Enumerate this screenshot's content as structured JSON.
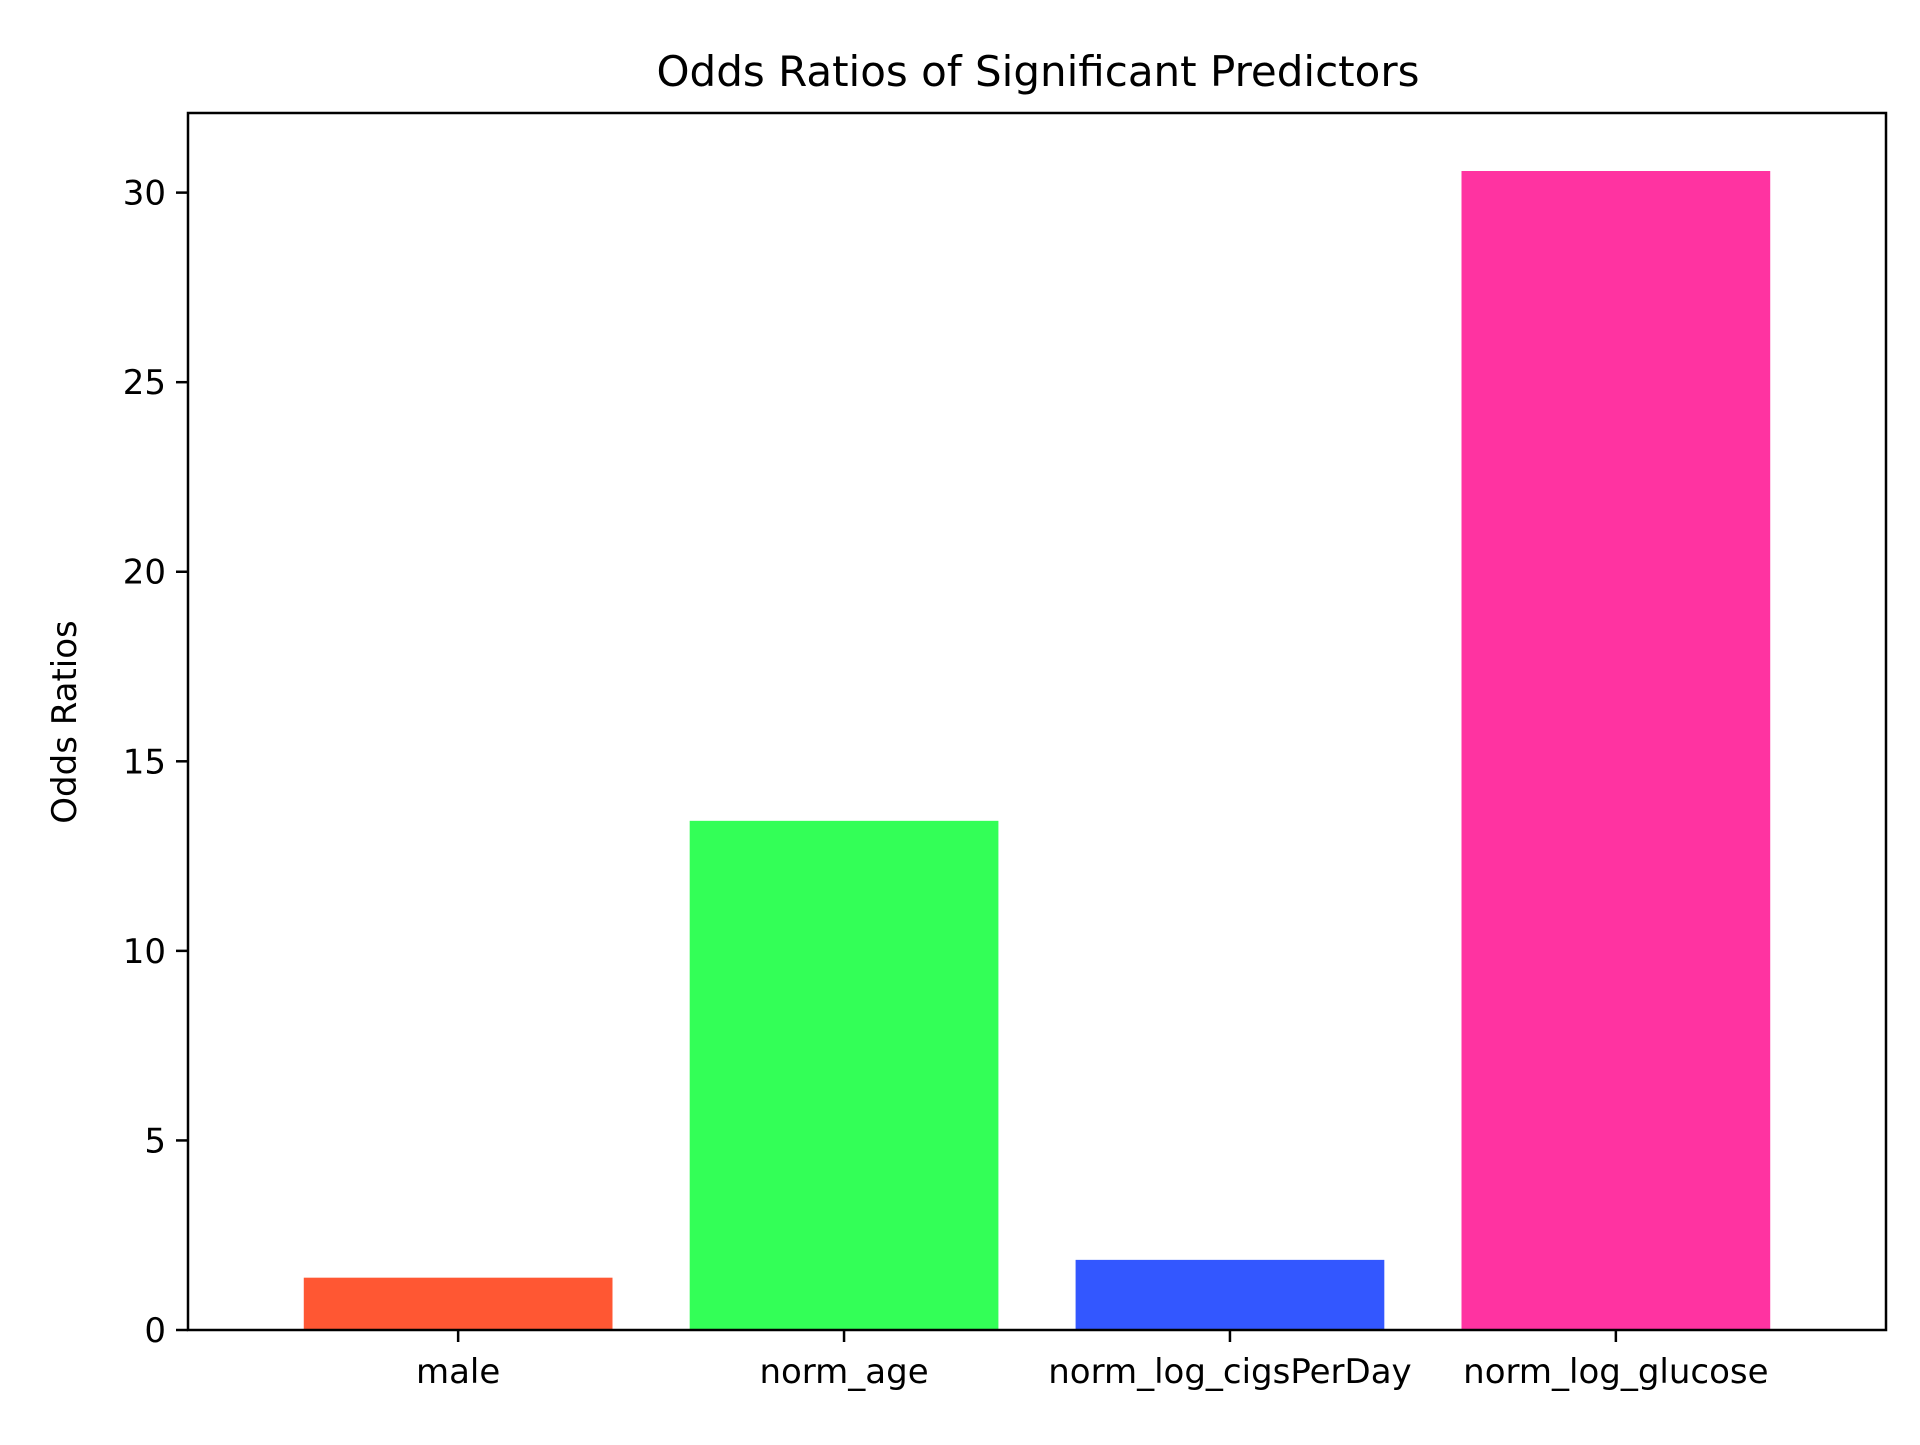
{
  "chart_data": {
    "type": "bar",
    "title": "Odds Ratios of Significant Predictors",
    "xlabel": "",
    "ylabel": "Odds Ratios",
    "categories": [
      "male",
      "norm_age",
      "norm_log_cigsPerDay",
      "norm_log_glucose"
    ],
    "values": [
      1.38,
      13.43,
      1.85,
      30.57
    ],
    "colors": [
      "#ff5733",
      "#33ff57",
      "#3357ff",
      "#ff33a1"
    ],
    "ylim": [
      0,
      32.1
    ],
    "yticks": [
      0,
      5,
      10,
      15,
      20,
      25,
      30
    ],
    "grid": false,
    "legend": "none"
  }
}
